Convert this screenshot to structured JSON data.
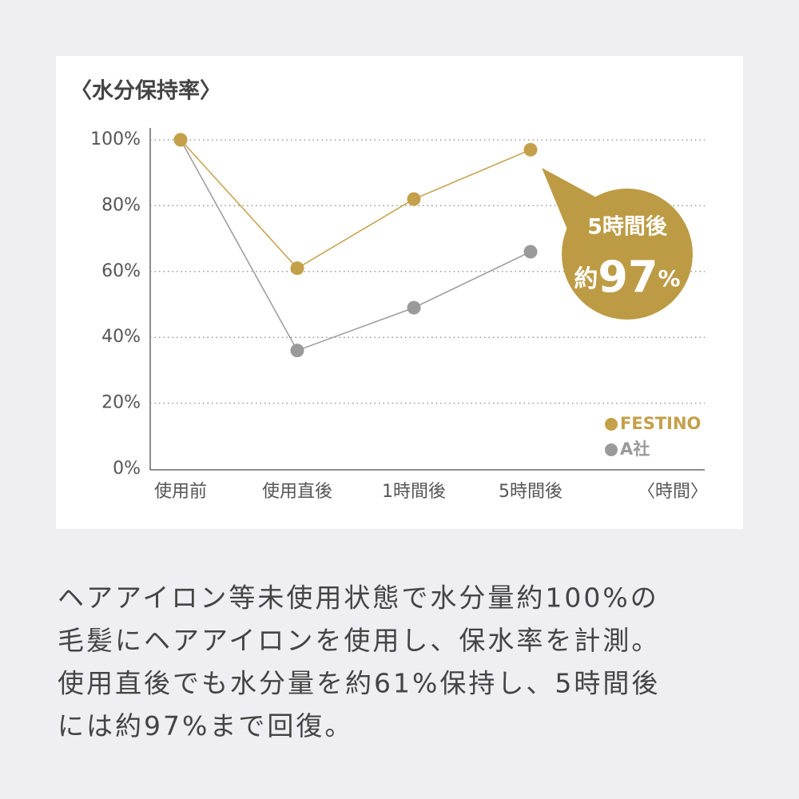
{
  "chart_data": {
    "type": "line",
    "title": "〈水分保持率〉",
    "x_label": "〈時間〉",
    "categories": [
      "使用前",
      "使用直後",
      "1時間後",
      "5時間後"
    ],
    "series": [
      {
        "name": "FESTINO",
        "color": "#c4a04a",
        "values": [
          100,
          61,
          82,
          97
        ]
      },
      {
        "name": "A社",
        "color": "#9a9a9a",
        "values": [
          100,
          36,
          49,
          66
        ]
      }
    ],
    "ylim": [
      0,
      100
    ],
    "yticks": [
      {
        "value": 0,
        "label": "0%"
      },
      {
        "value": 20,
        "label": "20%"
      },
      {
        "value": 40,
        "label": "40%"
      },
      {
        "value": 60,
        "label": "60%"
      },
      {
        "value": 80,
        "label": "80%"
      },
      {
        "value": 100,
        "label": "100%"
      }
    ],
    "grid": true,
    "annotation": {
      "label": "5時間後",
      "prefix": "約",
      "value": "97",
      "unit": "%"
    }
  },
  "caption": [
    "ヘアアイロン等未使用状態で水分量約100%の",
    "毛髪にヘアアイロンを使用し、保水率を計測。",
    "使用直後でも水分量を約61%保持し、5時間後",
    "には約97%まで回復。"
  ]
}
